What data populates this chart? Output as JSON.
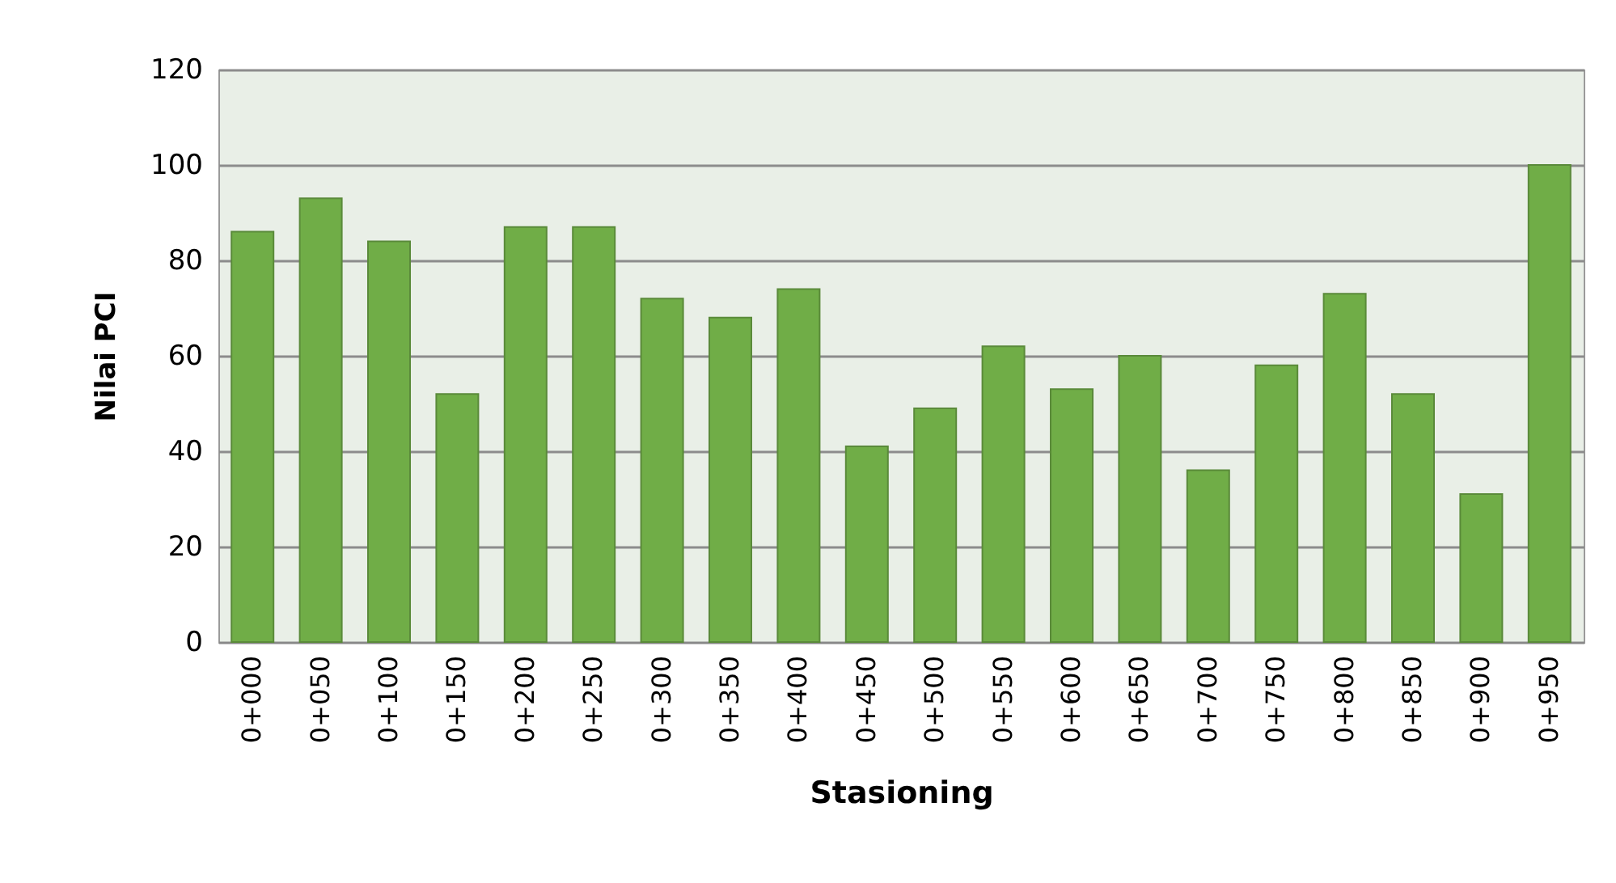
{
  "chart_data": {
    "type": "bar",
    "xlabel": "Stasioning",
    "ylabel": "Nilai PCI",
    "categories": [
      "0+000",
      "0+050",
      "0+100",
      "0+150",
      "0+200",
      "0+250",
      "0+300",
      "0+350",
      "0+400",
      "0+450",
      "0+500",
      "0+550",
      "0+600",
      "0+650",
      "0+700",
      "0+750",
      "0+800",
      "0+850",
      "0+900",
      "0+950"
    ],
    "values": [
      86,
      93,
      84,
      52,
      87,
      87,
      72,
      68,
      74,
      41,
      49,
      62,
      53,
      60,
      36,
      58,
      73,
      52,
      31,
      100
    ],
    "color": "#70ad47",
    "ylim": [
      0,
      120
    ],
    "yticks": [
      0,
      20,
      40,
      60,
      80,
      100,
      120
    ],
    "grid": "y"
  }
}
